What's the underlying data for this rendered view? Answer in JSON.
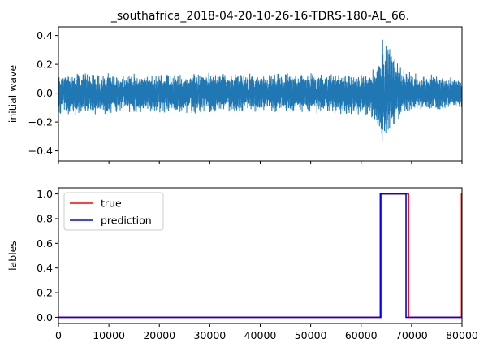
{
  "chart_data": [
    {
      "type": "line",
      "title": "_southafrica_2018-04-20-10-26-16-TDRS-180-AL_66.",
      "xlabel": "",
      "ylabel": "initial wave",
      "xlim": [
        0,
        80000
      ],
      "ylim": [
        -0.47,
        0.46
      ],
      "yticks": [
        -0.4,
        -0.2,
        0.0,
        0.2,
        0.4
      ],
      "ytick_labels": [
        "−0.4",
        "−0.2",
        "0.0",
        "0.2",
        "0.4"
      ],
      "xticks": [
        0,
        10000,
        20000,
        30000,
        40000,
        50000,
        60000,
        70000,
        80000
      ],
      "show_xtick_labels": false,
      "grid": false,
      "series": [
        {
          "color": "#1f77b4",
          "envelope": {
            "x": [
              0,
              5000,
              10000,
              20000,
              30000,
              40000,
              50000,
              55000,
              58000,
              60000,
              62000,
              63000,
              63500,
              64000,
              64500,
              65000,
              66000,
              67000,
              68000,
              70000,
              75000,
              80000
            ],
            "upper": [
              0.14,
              0.16,
              0.14,
              0.14,
              0.15,
              0.14,
              0.15,
              0.14,
              0.14,
              0.15,
              0.16,
              0.2,
              0.3,
              0.41,
              0.42,
              0.38,
              0.34,
              0.28,
              0.2,
              0.14,
              0.14,
              0.1
            ],
            "lower": [
              -0.16,
              -0.16,
              -0.15,
              -0.15,
              -0.15,
              -0.13,
              -0.15,
              -0.15,
              -0.16,
              -0.15,
              -0.18,
              -0.25,
              -0.34,
              -0.45,
              -0.42,
              -0.32,
              -0.28,
              -0.22,
              -0.18,
              -0.14,
              -0.14,
              -0.1
            ]
          }
        }
      ]
    },
    {
      "type": "line",
      "title": "",
      "xlabel": "",
      "ylabel": "lables",
      "xlim": [
        0,
        80000
      ],
      "ylim": [
        -0.05,
        1.05
      ],
      "yticks": [
        0.0,
        0.2,
        0.4,
        0.6,
        0.8,
        1.0
      ],
      "ytick_labels": [
        "0.0",
        "0.2",
        "0.4",
        "0.6",
        "0.8",
        "1.0"
      ],
      "xticks": [
        0,
        10000,
        20000,
        30000,
        40000,
        50000,
        60000,
        70000,
        80000
      ],
      "xtick_labels": [
        "0",
        "10000",
        "20000",
        "30000",
        "40000",
        "50000",
        "60000",
        "70000",
        "80000"
      ],
      "grid": false,
      "legend": "upper-left",
      "series": [
        {
          "name": "true",
          "color": "#ff0000",
          "x": [
            0,
            64000,
            64000,
            69400,
            69400,
            79900,
            79900,
            80000
          ],
          "y": [
            0,
            0,
            1,
            1,
            0,
            0,
            1,
            1
          ]
        },
        {
          "name": "prediction",
          "color": "#0000ff",
          "x": [
            0,
            63800,
            63800,
            68900,
            68900,
            80000
          ],
          "y": [
            0,
            0,
            1,
            1,
            0,
            0
          ]
        }
      ]
    }
  ]
}
